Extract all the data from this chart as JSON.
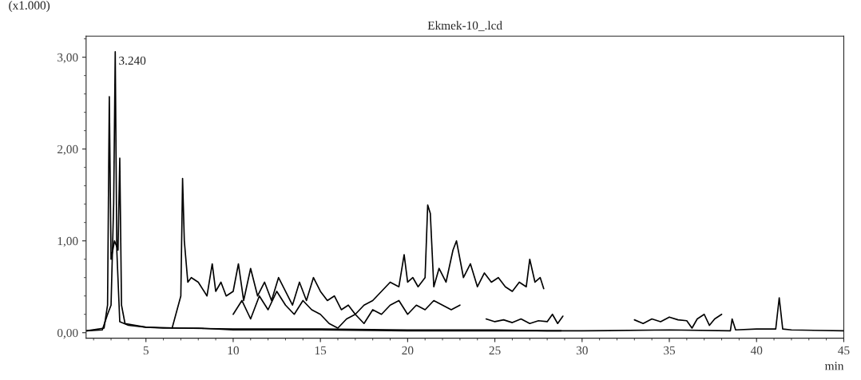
{
  "chart_data": {
    "type": "line",
    "title": "Ekmek-10_.lcd",
    "xlabel": "min",
    "ylabel": "(x1.000)",
    "xlim": [
      1.57,
      45
    ],
    "xticks": [
      5,
      10,
      15,
      20,
      25,
      30,
      35,
      40,
      45
    ],
    "ylim": [
      -0.06,
      3.23
    ],
    "yticks": [
      {
        "value": 0,
        "label": "0,00"
      },
      {
        "value": 1,
        "label": "1,00"
      },
      {
        "value": 2,
        "label": "2,00"
      },
      {
        "value": 3,
        "label": "3,00"
      }
    ],
    "grid": false,
    "legend": false,
    "marker": "none",
    "line_style": "solid",
    "annotations": [
      {
        "text": "3.240",
        "x": 3.24,
        "y": 3.06
      }
    ],
    "series": [
      {
        "color": "#000000",
        "x": [
          1.6,
          2.5,
          2.8,
          3.0,
          3.15,
          3.24,
          3.33,
          3.5,
          4,
          5,
          6,
          7,
          8,
          10,
          15,
          20,
          25,
          30,
          35,
          38.5,
          38.6,
          38.8,
          40,
          41.1,
          41.3,
          41.5,
          42,
          45
        ],
        "values": [
          0.02,
          0.03,
          0.2,
          0.3,
          1.4,
          3.06,
          0.9,
          0.12,
          0.08,
          0.06,
          0.05,
          0.05,
          0.05,
          0.03,
          0.03,
          0.02,
          0.02,
          0.02,
          0.03,
          0.02,
          0.15,
          0.03,
          0.04,
          0.04,
          0.38,
          0.04,
          0.03,
          0.02
        ]
      },
      {
        "color": "#000000",
        "x": [
          1.6,
          2.6,
          2.8,
          2.9,
          3.0,
          3.2,
          3.4,
          3.5,
          3.6,
          3.8,
          5,
          7,
          10,
          15,
          20,
          25,
          28,
          28.8
        ],
        "values": [
          0.02,
          0.05,
          0.3,
          2.57,
          0.8,
          1.0,
          0.9,
          1.9,
          0.3,
          0.1,
          0.06,
          0.05,
          0.04,
          0.04,
          0.03,
          0.03,
          0.02,
          0.02
        ]
      },
      {
        "color": "#000000",
        "x": [
          6.5,
          7.0,
          7.1,
          7.2,
          7.4,
          7.6,
          8.0,
          8.5,
          8.8,
          9.0,
          9.3,
          9.6,
          10.0,
          10.3,
          10.6,
          11.0,
          11.4,
          11.8,
          12.2,
          12.6,
          13.0,
          13.4,
          13.8,
          14.2,
          14.6,
          15.0,
          15.4,
          15.8,
          16.2,
          16.6,
          17.0
        ],
        "values": [
          0.05,
          0.4,
          1.68,
          1.0,
          0.55,
          0.6,
          0.55,
          0.4,
          0.75,
          0.45,
          0.55,
          0.4,
          0.45,
          0.75,
          0.35,
          0.7,
          0.4,
          0.55,
          0.35,
          0.6,
          0.45,
          0.3,
          0.55,
          0.35,
          0.6,
          0.45,
          0.35,
          0.4,
          0.25,
          0.3,
          0.2
        ]
      },
      {
        "color": "#000000",
        "x": [
          17.0,
          17.5,
          18,
          18.5,
          19,
          19.5,
          19.8,
          20,
          20.3,
          20.6,
          21,
          21.15,
          21.3,
          21.5,
          21.8,
          22.2,
          22.6,
          22.8,
          23.2,
          23.6,
          24,
          24.4,
          24.8,
          25.2,
          25.6,
          26,
          26.4,
          26.8,
          27.0,
          27.3,
          27.6,
          27.8
        ],
        "values": [
          0.2,
          0.3,
          0.35,
          0.45,
          0.55,
          0.5,
          0.85,
          0.55,
          0.6,
          0.5,
          0.6,
          1.39,
          1.3,
          0.5,
          0.7,
          0.55,
          0.9,
          1.0,
          0.6,
          0.75,
          0.5,
          0.65,
          0.55,
          0.6,
          0.5,
          0.45,
          0.55,
          0.5,
          0.8,
          0.55,
          0.6,
          0.48
        ]
      },
      {
        "color": "#000000",
        "x": [
          10,
          10.5,
          11,
          11.5,
          12,
          12.5,
          13,
          13.5,
          14,
          14.5,
          15,
          15.5,
          16,
          16.5,
          17,
          17.5,
          18,
          18.5,
          19,
          19.5,
          20,
          20.5,
          21,
          21.5,
          22,
          22.5,
          23
        ],
        "values": [
          0.2,
          0.35,
          0.15,
          0.4,
          0.25,
          0.45,
          0.3,
          0.2,
          0.35,
          0.25,
          0.2,
          0.1,
          0.05,
          0.15,
          0.2,
          0.1,
          0.25,
          0.2,
          0.3,
          0.35,
          0.2,
          0.3,
          0.25,
          0.35,
          0.3,
          0.25,
          0.3
        ]
      },
      {
        "color": "#000000",
        "x": [
          24.5,
          25,
          25.5,
          26,
          26.5,
          27,
          27.5,
          28,
          28.3,
          28.6,
          28.9
        ],
        "values": [
          0.15,
          0.12,
          0.14,
          0.11,
          0.15,
          0.1,
          0.13,
          0.12,
          0.2,
          0.1,
          0.18
        ]
      },
      {
        "color": "#000000",
        "x": [
          33,
          33.5,
          34,
          34.5,
          35,
          35.5,
          36,
          36.3,
          36.6,
          37,
          37.3,
          37.6,
          38
        ],
        "values": [
          0.14,
          0.1,
          0.15,
          0.12,
          0.17,
          0.14,
          0.13,
          0.05,
          0.15,
          0.2,
          0.08,
          0.15,
          0.2
        ]
      }
    ]
  }
}
